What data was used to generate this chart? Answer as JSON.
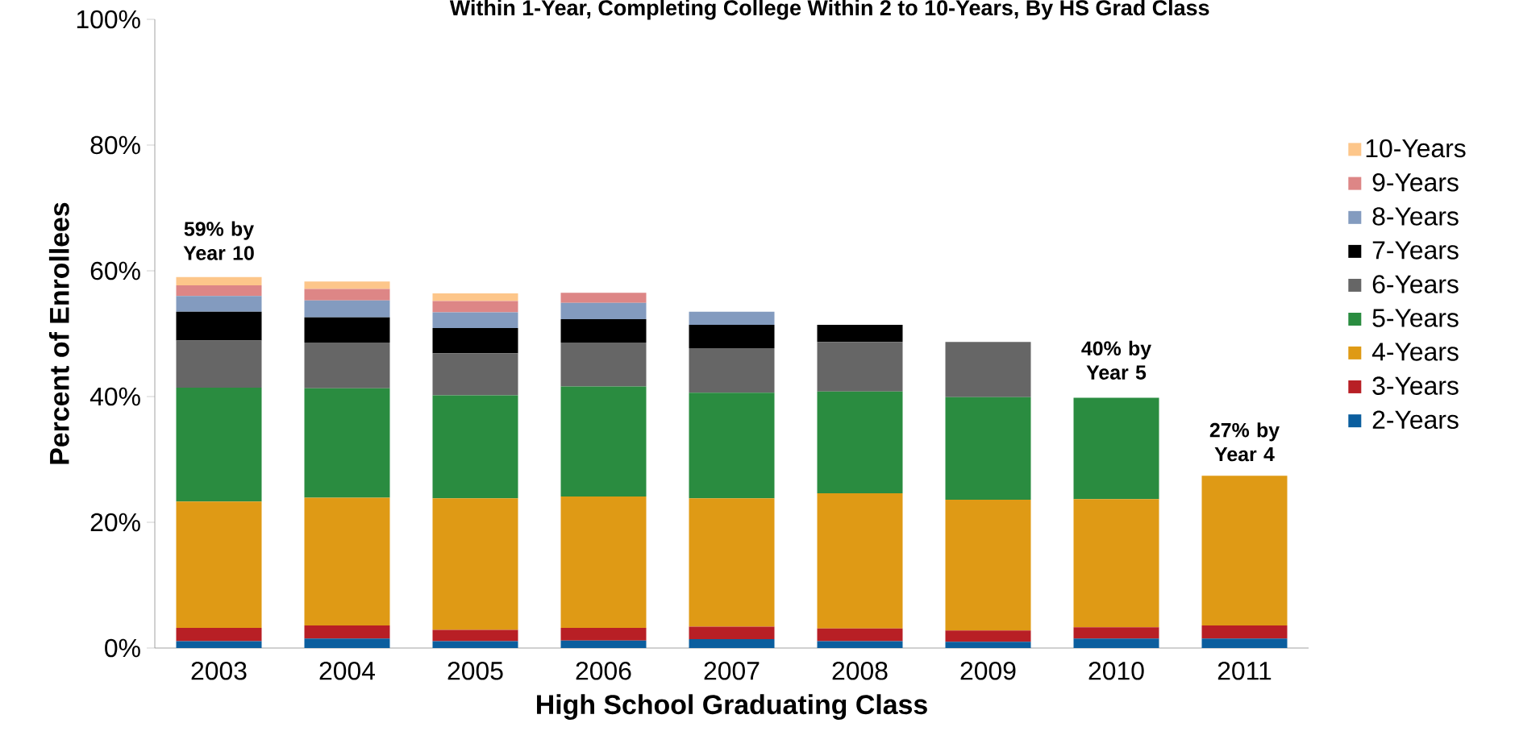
{
  "chart_data": {
    "type": "bar",
    "stacked": true,
    "title": "Within 1-Year, Completing College Within 2 to 10-Years, By HS Grad Class",
    "xlabel": "High School Graduating Class",
    "ylabel": "Percent of Enrollees",
    "categories": [
      "2003",
      "2004",
      "2005",
      "2006",
      "2007",
      "2008",
      "2009",
      "2010",
      "2011"
    ],
    "ylim": [
      0,
      100
    ],
    "yticks": [
      {
        "value": 0,
        "label": "0%"
      },
      {
        "value": 20,
        "label": "20%"
      },
      {
        "value": 40,
        "label": "40%"
      },
      {
        "value": 60,
        "label": "60%"
      },
      {
        "value": 80,
        "label": "80%"
      },
      {
        "value": 100,
        "label": "100%"
      }
    ],
    "legend": "right",
    "series": [
      {
        "name": "2-Years",
        "color": "#0b5e9e",
        "values": [
          1.1,
          1.5,
          1.1,
          1.2,
          1.4,
          1.1,
          1.0,
          1.5,
          1.5
        ]
      },
      {
        "name": "3-Years",
        "color": "#b81f25",
        "values": [
          2.1,
          2.1,
          1.8,
          2.0,
          2.0,
          2.0,
          1.8,
          1.8,
          2.1
        ]
      },
      {
        "name": "4-Years",
        "color": "#df9a15",
        "values": [
          20.1,
          20.3,
          20.9,
          20.9,
          20.4,
          21.5,
          20.8,
          20.4,
          23.8
        ]
      },
      {
        "name": "5-Years",
        "color": "#2a8c40",
        "values": [
          18.1,
          17.4,
          16.4,
          17.5,
          16.8,
          16.2,
          16.3,
          16.1,
          null
        ]
      },
      {
        "name": "6-Years",
        "color": "#666666",
        "values": [
          7.5,
          7.3,
          6.7,
          7.0,
          7.1,
          7.9,
          8.8,
          null,
          null
        ]
      },
      {
        "name": "7-Years",
        "color": "#000000",
        "values": [
          4.6,
          4.0,
          4.0,
          3.7,
          3.7,
          2.7,
          null,
          null,
          null
        ]
      },
      {
        "name": "8-Years",
        "color": "#839bbf",
        "values": [
          2.5,
          2.7,
          2.5,
          2.6,
          2.1,
          null,
          null,
          null,
          null
        ]
      },
      {
        "name": "9-Years",
        "color": "#dd8686",
        "values": [
          1.7,
          1.8,
          1.8,
          1.6,
          null,
          null,
          null,
          null,
          null
        ]
      },
      {
        "name": "10-Years",
        "color": "#fdc68a",
        "values": [
          1.3,
          1.2,
          1.2,
          null,
          null,
          null,
          null,
          null,
          null
        ]
      }
    ],
    "annotations": [
      {
        "text": "59% by Year 10",
        "x": "2003",
        "y": 59
      },
      {
        "text": "40% by Year 5",
        "x": "2010",
        "y": 40
      },
      {
        "text": "27% by Year 4",
        "x": "2011",
        "y": 27
      }
    ]
  }
}
